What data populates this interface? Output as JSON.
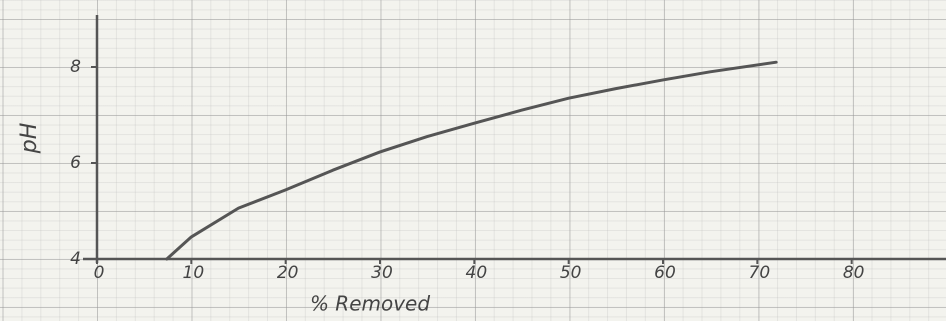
{
  "chart_data": {
    "type": "line",
    "xlabel": "% Removed",
    "ylabel": "pH",
    "x": [
      7.4,
      10,
      15,
      20,
      25,
      30,
      35,
      40,
      45,
      50,
      55,
      60,
      65,
      72
    ],
    "values": [
      4,
      4.46,
      5.06,
      5.44,
      5.85,
      6.23,
      6.55,
      6.83,
      7.1,
      7.35,
      7.55,
      7.73,
      7.9,
      8.1
    ],
    "color": "#555555",
    "xlim": [
      0,
      90
    ],
    "xticks": [
      0,
      10,
      20,
      30,
      40,
      50,
      60,
      70,
      80
    ],
    "ylim": [
      4,
      9
    ],
    "yticks": [
      4,
      6,
      8
    ]
  }
}
